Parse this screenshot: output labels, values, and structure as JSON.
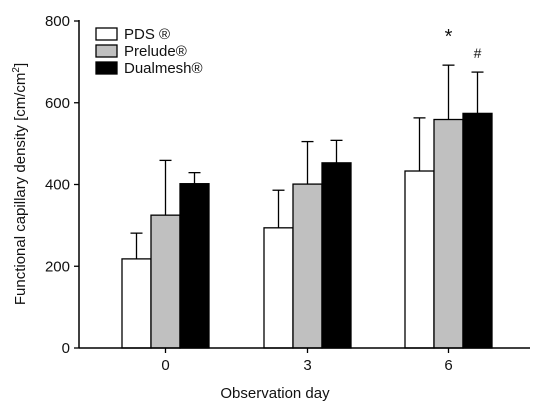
{
  "chart_data": {
    "type": "bar",
    "xlabel": "Observation day",
    "ylabel": "Functional capillary density [cm/cm²]",
    "ylabel_main": "Functional capillary density [cm/cm",
    "ylabel_sup": "2",
    "ylabel_close": "]",
    "categories": [
      "0",
      "3",
      "6"
    ],
    "ylim": [
      0,
      800
    ],
    "yticks": [
      "0",
      "200",
      "400",
      "600",
      "800"
    ],
    "grid": false,
    "legend_position": "top-left",
    "series": [
      {
        "name": "PDS ®",
        "fill": "#ffffff",
        "values": [
          218,
          294,
          433
        ],
        "errors": [
          63,
          92,
          130
        ]
      },
      {
        "name": "Prelude®",
        "fill": "#c0c0c0",
        "values": [
          325,
          401,
          559
        ],
        "errors": [
          134,
          104,
          133
        ]
      },
      {
        "name": "Dualmesh®",
        "fill": "#000000",
        "values": [
          402,
          453,
          574
        ],
        "errors": [
          27,
          55,
          101
        ]
      }
    ],
    "annotations": [
      {
        "text": "*",
        "category": "6",
        "series": 1
      },
      {
        "text": "#",
        "category": "6",
        "series": 2
      }
    ]
  }
}
